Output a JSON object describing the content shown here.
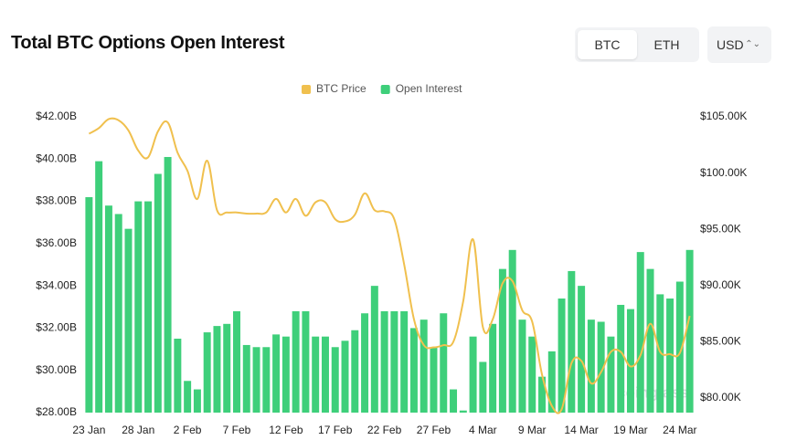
{
  "header": {
    "title": "Total BTC Options Open Interest"
  },
  "controls": {
    "coins": [
      "BTC",
      "ETH"
    ],
    "currency": "USD"
  },
  "chart_data": {
    "type": "bar-line",
    "watermark": "coinglass",
    "categories": [
      "23 Jan",
      null,
      null,
      null,
      null,
      "28 Jan",
      null,
      null,
      null,
      null,
      "2 Feb",
      null,
      null,
      null,
      null,
      "7 Feb",
      null,
      null,
      null,
      null,
      "12 Feb",
      null,
      null,
      null,
      null,
      "17 Feb",
      null,
      null,
      null,
      null,
      "22 Feb",
      null,
      null,
      null,
      null,
      "27 Feb",
      null,
      null,
      null,
      null,
      "4 Mar",
      null,
      null,
      null,
      null,
      "9 Mar",
      null,
      null,
      null,
      null,
      "14 Mar",
      null,
      null,
      null,
      null,
      "19 Mar",
      null,
      null,
      null,
      null,
      "24 Mar",
      null
    ],
    "series": [
      {
        "name": "BTC Price",
        "type": "line",
        "axis": "y2",
        "color": "#f0c04e",
        "values": [
          103500,
          104000,
          104800,
          104700,
          103800,
          102000,
          101400,
          103700,
          104500,
          101800,
          100200,
          97700,
          101100,
          96700,
          96500,
          96500,
          96400,
          96400,
          96500,
          97700,
          96500,
          97700,
          96200,
          97400,
          97400,
          95900,
          95700,
          96300,
          98200,
          96700,
          96600,
          95900,
          91900,
          87000,
          84700,
          84500,
          84700,
          85000,
          88600,
          94100,
          86300,
          87000,
          90200,
          90400,
          87800,
          86800,
          82100,
          79300,
          79000,
          83100,
          83300,
          81300,
          82300,
          84100,
          84100,
          82800,
          83800,
          86600,
          84100,
          83900,
          84000,
          87300
        ]
      },
      {
        "name": "Open Interest",
        "type": "bar",
        "color": "#3ecf7a",
        "values": [
          38.2,
          39.9,
          37.8,
          37.4,
          36.7,
          38.0,
          38.0,
          39.3,
          40.1,
          31.5,
          29.5,
          29.1,
          31.8,
          32.1,
          32.2,
          32.8,
          31.2,
          31.1,
          31.1,
          31.7,
          31.6,
          32.8,
          32.8,
          31.6,
          31.6,
          31.1,
          31.4,
          31.9,
          32.7,
          34.0,
          32.8,
          32.8,
          32.8,
          32.0,
          32.4,
          31.1,
          32.7,
          29.1,
          28.1,
          31.6,
          30.4,
          32.2,
          34.8,
          35.7,
          32.4,
          31.6,
          29.7,
          30.9,
          33.4,
          34.7,
          34.0,
          32.4,
          32.3,
          31.6,
          33.1,
          32.9,
          35.6,
          34.8,
          33.6,
          33.4,
          34.2,
          35.7
        ]
      }
    ],
    "ylim": [
      28,
      42
    ],
    "yticks": [
      {
        "value": 28,
        "label": "$28.00B"
      },
      {
        "value": 30,
        "label": "$30.00B"
      },
      {
        "value": 32,
        "label": "$32.00B"
      },
      {
        "value": 34,
        "label": "$34.00B"
      },
      {
        "value": 36,
        "label": "$36.00B"
      },
      {
        "value": 38,
        "label": "$38.00B"
      },
      {
        "value": 40,
        "label": "$40.00B"
      },
      {
        "value": 42,
        "label": "$42.00B"
      }
    ],
    "y2lim": [
      78700,
      105000
    ],
    "y2ticks": [
      {
        "value": 80000,
        "label": "$80.00K"
      },
      {
        "value": 85000,
        "label": "$85.00K"
      },
      {
        "value": 90000,
        "label": "$90.00K"
      },
      {
        "value": 95000,
        "label": "$95.00K"
      },
      {
        "value": 100000,
        "label": "$100.00K"
      },
      {
        "value": 105000,
        "label": "$105.00K"
      }
    ],
    "legend": "top"
  }
}
